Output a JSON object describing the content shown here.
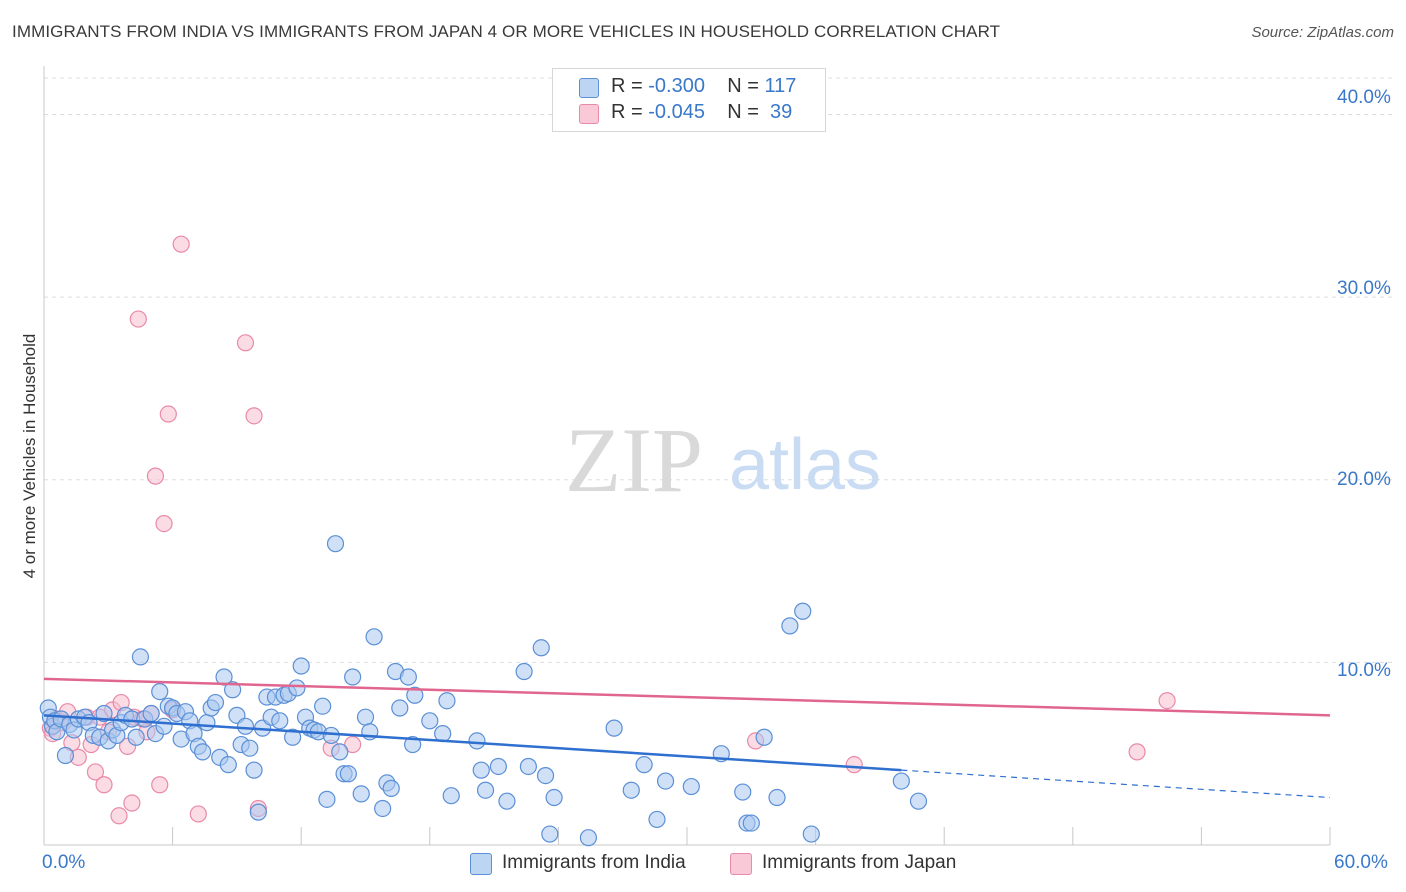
{
  "title": "IMMIGRANTS FROM INDIA VS IMMIGRANTS FROM JAPAN 4 OR MORE VEHICLES IN HOUSEHOLD CORRELATION CHART",
  "source": "Source: ZipAtlas.com",
  "watermark": {
    "zip": "ZIP",
    "atlas": "atlas"
  },
  "legend": {
    "india": {
      "r_label": "R = ",
      "r_value": "-0.300",
      "n_label": "N = ",
      "n_value": "117"
    },
    "japan": {
      "r_label": "R = ",
      "r_value": "-0.045",
      "n_label": "N = ",
      "n_value": " 39"
    }
  },
  "colors": {
    "india_fill": "#a9c8f0",
    "india_stroke": "#5b8fd6",
    "india_line": "#2e6fcf",
    "japan_fill": "#f7bfd0",
    "japan_stroke": "#e88aa8",
    "japan_line": "#e0668f",
    "tick": "#3a78c9",
    "grid": "#dddddd"
  },
  "chart_data": {
    "type": "scatter",
    "title": "IMMIGRANTS FROM INDIA VS IMMIGRANTS FROM JAPAN 4 OR MORE VEHICLES IN HOUSEHOLD CORRELATION CHART",
    "xlabel": "",
    "ylabel": "4 or more Vehicles in Household",
    "xlim": [
      0,
      60
    ],
    "ylim": [
      0,
      42
    ],
    "x_tick_labels": [
      "0.0%",
      "60.0%"
    ],
    "y_ticks": [
      10,
      20,
      30,
      40
    ],
    "y_tick_labels": [
      "10.0%",
      "20.0%",
      "30.0%",
      "40.0%"
    ],
    "grid": true,
    "legend_position": "top-center",
    "series": [
      {
        "name": "Immigrants from India",
        "r": -0.3,
        "n": 117,
        "trend": {
          "x0": 0,
          "y0": 7.1,
          "x1": 40,
          "y1": 4.1,
          "dashed_to_x": 60,
          "dashed_to_y": 2.6
        },
        "points": [
          [
            0.2,
            7.5
          ],
          [
            0.3,
            7.0
          ],
          [
            0.4,
            6.5
          ],
          [
            0.5,
            6.8
          ],
          [
            0.6,
            6.2
          ],
          [
            0.8,
            6.9
          ],
          [
            1.0,
            4.9
          ],
          [
            1.2,
            6.6
          ],
          [
            1.4,
            6.3
          ],
          [
            1.6,
            6.9
          ],
          [
            1.9,
            7.0
          ],
          [
            2.1,
            6.7
          ],
          [
            2.3,
            6.0
          ],
          [
            2.6,
            5.9
          ],
          [
            2.8,
            7.2
          ],
          [
            3.0,
            5.7
          ],
          [
            3.2,
            6.3
          ],
          [
            3.4,
            6.0
          ],
          [
            3.6,
            6.7
          ],
          [
            3.8,
            7.1
          ],
          [
            4.1,
            6.9
          ],
          [
            4.3,
            5.9
          ],
          [
            4.5,
            10.3
          ],
          [
            4.7,
            6.9
          ],
          [
            5.0,
            7.2
          ],
          [
            5.2,
            6.1
          ],
          [
            5.4,
            8.4
          ],
          [
            5.6,
            6.5
          ],
          [
            5.8,
            7.6
          ],
          [
            6.0,
            7.5
          ],
          [
            6.2,
            7.2
          ],
          [
            6.4,
            5.8
          ],
          [
            6.6,
            7.3
          ],
          [
            6.8,
            6.8
          ],
          [
            7.0,
            6.1
          ],
          [
            7.2,
            5.4
          ],
          [
            7.4,
            5.1
          ],
          [
            7.6,
            6.7
          ],
          [
            7.8,
            7.5
          ],
          [
            8.0,
            7.8
          ],
          [
            8.2,
            4.8
          ],
          [
            8.4,
            9.2
          ],
          [
            8.6,
            4.4
          ],
          [
            8.8,
            8.5
          ],
          [
            9.0,
            7.1
          ],
          [
            9.2,
            5.5
          ],
          [
            9.4,
            6.5
          ],
          [
            9.6,
            5.3
          ],
          [
            9.8,
            4.1
          ],
          [
            10.0,
            1.8
          ],
          [
            10.2,
            6.4
          ],
          [
            10.4,
            8.1
          ],
          [
            10.6,
            7.0
          ],
          [
            10.8,
            8.1
          ],
          [
            11.0,
            6.8
          ],
          [
            11.2,
            8.2
          ],
          [
            11.4,
            8.3
          ],
          [
            11.6,
            5.9
          ],
          [
            11.8,
            8.6
          ],
          [
            12.0,
            9.8
          ],
          [
            12.2,
            7.0
          ],
          [
            12.4,
            6.4
          ],
          [
            12.6,
            6.3
          ],
          [
            12.8,
            6.2
          ],
          [
            13.0,
            7.6
          ],
          [
            13.2,
            2.5
          ],
          [
            13.4,
            6.0
          ],
          [
            13.6,
            16.5
          ],
          [
            13.8,
            5.1
          ],
          [
            14.0,
            3.9
          ],
          [
            14.2,
            3.9
          ],
          [
            14.4,
            9.2
          ],
          [
            14.8,
            2.8
          ],
          [
            15.0,
            7.0
          ],
          [
            15.2,
            6.2
          ],
          [
            15.4,
            11.4
          ],
          [
            15.8,
            2.0
          ],
          [
            16.0,
            3.4
          ],
          [
            16.2,
            3.1
          ],
          [
            16.4,
            9.5
          ],
          [
            16.6,
            7.5
          ],
          [
            17.0,
            9.2
          ],
          [
            17.2,
            5.5
          ],
          [
            17.3,
            8.2
          ],
          [
            18.0,
            6.8
          ],
          [
            18.6,
            6.1
          ],
          [
            18.8,
            7.9
          ],
          [
            19.0,
            2.7
          ],
          [
            20.2,
            5.7
          ],
          [
            20.4,
            4.1
          ],
          [
            20.6,
            3.0
          ],
          [
            21.2,
            4.3
          ],
          [
            21.6,
            2.4
          ],
          [
            22.4,
            9.5
          ],
          [
            22.6,
            4.3
          ],
          [
            23.2,
            10.8
          ],
          [
            23.4,
            3.8
          ],
          [
            23.6,
            0.6
          ],
          [
            23.8,
            2.6
          ],
          [
            25.4,
            0.4
          ],
          [
            26.6,
            6.4
          ],
          [
            27.4,
            3.0
          ],
          [
            28.0,
            4.4
          ],
          [
            28.6,
            1.4
          ],
          [
            29.0,
            3.5
          ],
          [
            30.2,
            3.2
          ],
          [
            31.6,
            5.0
          ],
          [
            32.6,
            2.9
          ],
          [
            32.8,
            1.2
          ],
          [
            33.0,
            1.2
          ],
          [
            33.6,
            5.9
          ],
          [
            34.2,
            2.6
          ],
          [
            34.8,
            12.0
          ],
          [
            35.4,
            12.8
          ],
          [
            35.8,
            0.6
          ],
          [
            40.0,
            3.5
          ],
          [
            40.8,
            2.4
          ]
        ]
      },
      {
        "name": "Immigrants from Japan",
        "r": -0.045,
        "n": 39,
        "trend": {
          "x0": 0,
          "y0": 9.1,
          "x1": 60,
          "y1": 7.1
        },
        "points": [
          [
            0.3,
            6.4
          ],
          [
            0.4,
            6.1
          ],
          [
            0.6,
            6.9
          ],
          [
            0.9,
            6.7
          ],
          [
            1.1,
            7.3
          ],
          [
            1.3,
            5.6
          ],
          [
            1.6,
            4.8
          ],
          [
            2.0,
            7.0
          ],
          [
            2.2,
            5.5
          ],
          [
            2.4,
            4.0
          ],
          [
            2.6,
            7.0
          ],
          [
            2.8,
            3.3
          ],
          [
            3.0,
            6.2
          ],
          [
            3.2,
            7.4
          ],
          [
            3.5,
            1.6
          ],
          [
            3.6,
            7.8
          ],
          [
            3.9,
            5.4
          ],
          [
            4.1,
            2.3
          ],
          [
            4.2,
            7.0
          ],
          [
            4.4,
            28.8
          ],
          [
            4.6,
            6.9
          ],
          [
            4.8,
            6.2
          ],
          [
            5.0,
            7.2
          ],
          [
            5.2,
            20.2
          ],
          [
            5.4,
            3.3
          ],
          [
            5.6,
            17.6
          ],
          [
            5.8,
            23.6
          ],
          [
            6.0,
            7.4
          ],
          [
            6.4,
            32.9
          ],
          [
            7.2,
            1.7
          ],
          [
            9.4,
            27.5
          ],
          [
            9.8,
            23.5
          ],
          [
            10.0,
            2.0
          ],
          [
            13.4,
            5.3
          ],
          [
            14.4,
            5.5
          ],
          [
            33.2,
            5.7
          ],
          [
            37.8,
            4.4
          ],
          [
            51.0,
            5.1
          ],
          [
            52.4,
            7.9
          ]
        ]
      }
    ]
  },
  "bottom_legend": {
    "india": "Immigrants from India",
    "japan": "Immigrants from Japan"
  }
}
